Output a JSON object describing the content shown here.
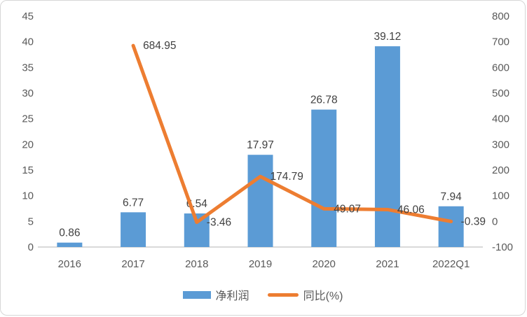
{
  "chart_data": {
    "type": "combo",
    "title": "",
    "categories": [
      "2016",
      "2017",
      "2018",
      "2019",
      "2020",
      "2021",
      "2022Q1"
    ],
    "series": [
      {
        "name": "净利润",
        "type": "bar",
        "axis": "left",
        "color": "#5b9bd5",
        "values": [
          0.86,
          6.77,
          6.54,
          17.97,
          26.78,
          39.12,
          7.94
        ],
        "labels": [
          "0.86",
          "6.77",
          "6.54",
          "17.97",
          "26.78",
          "39.12",
          "7.94"
        ]
      },
      {
        "name": "同比(%)",
        "type": "line",
        "axis": "right",
        "color": "#ed7d31",
        "values": [
          null,
          684.95,
          -3.46,
          174.79,
          49.07,
          46.06,
          -0.39
        ],
        "labels": [
          null,
          "684.95",
          "-3.46",
          "174.79",
          "49.07",
          "46.06",
          "-0.39"
        ]
      }
    ],
    "left_axis": {
      "min": 0,
      "max": 45,
      "step": 5,
      "ticks": [
        "0",
        "5",
        "10",
        "15",
        "20",
        "25",
        "30",
        "35",
        "40",
        "45"
      ]
    },
    "right_axis": {
      "min": -100,
      "max": 800,
      "step": 100,
      "ticks": [
        "-100",
        "0",
        "100",
        "200",
        "300",
        "400",
        "500",
        "600",
        "700",
        "800"
      ]
    },
    "grid": false,
    "legend_position": "bottom",
    "colors": {
      "axis_text": "#595959",
      "data_label_text": "#404040",
      "baseline": "#d9d9d9"
    }
  }
}
